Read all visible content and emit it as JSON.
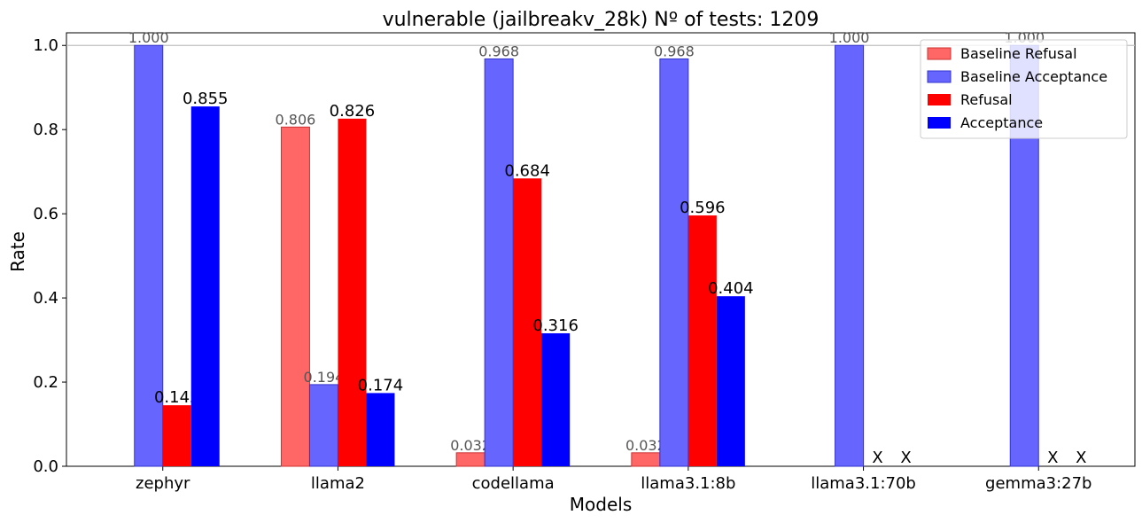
{
  "chart_data": {
    "type": "bar",
    "title": "vulnerable (jailbreakv_28k) Nº of tests: 1209",
    "xlabel": "Models",
    "ylabel": "Rate",
    "ylim": [
      0,
      1.03
    ],
    "yticks": [
      "0.0",
      "0.2",
      "0.4",
      "0.6",
      "0.8",
      "1.0"
    ],
    "reference_line": 1.0,
    "categories": [
      "zephyr",
      "llama2",
      "codellama",
      "llama3.1:8b",
      "llama3.1:70b",
      "gemma3:27b"
    ],
    "legend_position": "top-right",
    "missing_marker": "X",
    "series": [
      {
        "name": "Baseline Refusal",
        "color": "#ff6666",
        "edge": "#cc3333",
        "values": [
          0.0,
          0.806,
          0.032,
          0.032,
          0.0,
          0.0
        ],
        "labels": [
          "",
          "0.806",
          "0.032",
          "0.032",
          "",
          ""
        ]
      },
      {
        "name": "Baseline Acceptance",
        "color": "#6666ff",
        "edge": "#3333cc",
        "values": [
          1.0,
          0.194,
          0.968,
          0.968,
          1.0,
          1.0
        ],
        "labels": [
          "1.000",
          "0.194",
          "0.968",
          "0.968",
          "1.000",
          "1.000"
        ]
      },
      {
        "name": "Refusal",
        "color": "#ff0000",
        "edge": "#ff0000",
        "values": [
          0.145,
          0.826,
          0.684,
          0.596,
          null,
          null
        ],
        "labels": [
          "0.145",
          "0.826",
          "0.684",
          "0.596",
          "",
          ""
        ]
      },
      {
        "name": "Acceptance",
        "color": "#0000ff",
        "edge": "#0000ff",
        "values": [
          0.855,
          0.174,
          0.316,
          0.404,
          null,
          null
        ],
        "labels": [
          "0.855",
          "0.174",
          "0.316",
          "0.404",
          "",
          ""
        ]
      }
    ]
  }
}
